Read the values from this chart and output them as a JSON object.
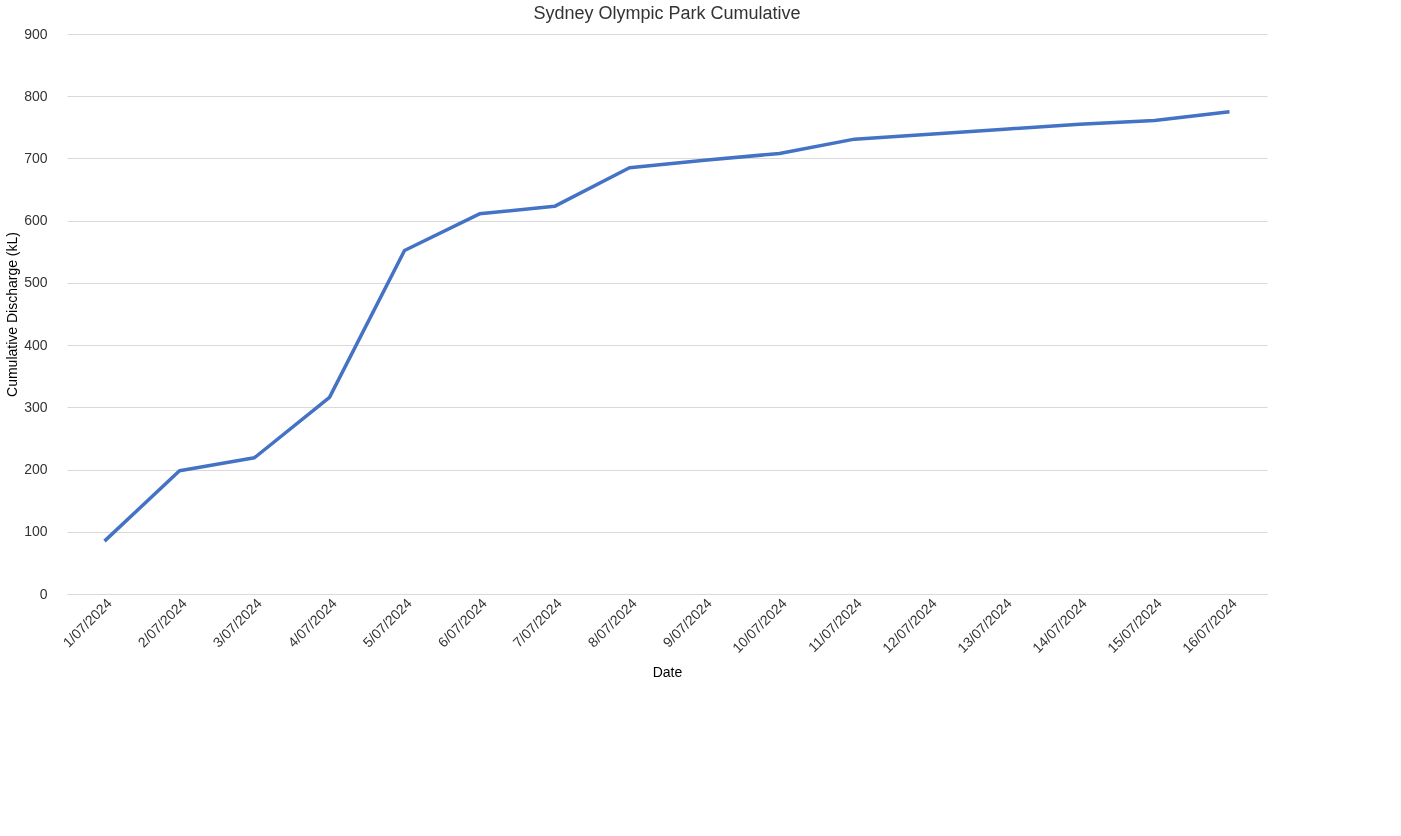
{
  "chart_data": {
    "type": "line",
    "title": "Sydney Olympic Park Cumulative",
    "xlabel": "Date",
    "ylabel": "Cumulative Discharge (kL)",
    "categories": [
      "1/07/2024",
      "2/07/2024",
      "3/07/2024",
      "4/07/2024",
      "5/07/2024",
      "6/07/2024",
      "7/07/2024",
      "8/07/2024",
      "9/07/2024",
      "10/07/2024",
      "11/07/2024",
      "12/07/2024",
      "13/07/2024",
      "14/07/2024",
      "15/07/2024",
      "16/07/2024"
    ],
    "series": [
      {
        "color": "#4472c4",
        "values": [
          85,
          198,
          219,
          316,
          552,
          611,
          623,
          685,
          697,
          708,
          731,
          739,
          747,
          755,
          761,
          775
        ]
      }
    ],
    "ylim": [
      0,
      900
    ],
    "yticks": [
      0,
      100,
      200,
      300,
      400,
      500,
      600,
      700,
      800,
      900
    ],
    "grid": "y",
    "marker": "none",
    "line_style": "solid"
  }
}
